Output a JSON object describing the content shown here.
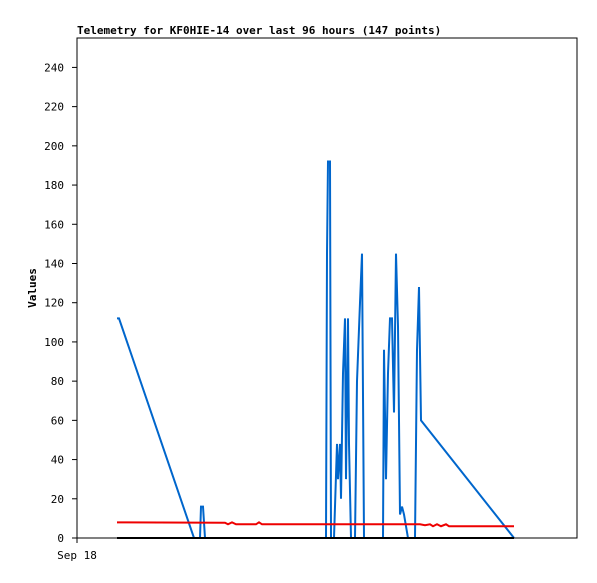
{
  "chart_data": {
    "type": "line",
    "title": "Telemetry for KF0HIE-14 over last 96 hours (147 points)",
    "y_label": "Values",
    "xlim": [
      0,
      100
    ],
    "xticks": [
      {
        "value": 0,
        "label": "Sep 18"
      }
    ],
    "ylim": [
      0,
      255
    ],
    "yticks": [
      0,
      20,
      40,
      60,
      80,
      100,
      120,
      140,
      160,
      180,
      200,
      220,
      240
    ],
    "series": [
      {
        "color": "#0066cc",
        "x": [
          8,
          8.4,
          23.4,
          24.6,
          24.8,
          25.2,
          25.6,
          49.8,
          50,
          50.2,
          50.6,
          50.8,
          51.4,
          52,
          52.2,
          52.6,
          52.8,
          53.2,
          53.6,
          53.8,
          54.2,
          54.4,
          54.8,
          55.6,
          56,
          56.6,
          57,
          57.4,
          61.2,
          61.4,
          61.8,
          62.2,
          62.6,
          63,
          63.4,
          63.8,
          64.2,
          64.6,
          65,
          65.4,
          66.2,
          67.6,
          68,
          68.4,
          68.8,
          87.4
        ],
        "values": [
          112,
          112,
          0,
          0,
          16,
          16,
          0,
          0,
          145,
          192,
          192,
          0,
          0,
          48,
          30,
          48,
          20,
          84,
          112,
          30,
          112,
          48,
          0,
          0,
          80,
          120,
          145,
          0,
          0,
          96,
          30,
          84,
          112,
          112,
          64,
          145,
          108,
          12,
          16,
          12,
          0,
          0,
          96,
          128,
          60,
          0
        ]
      },
      {
        "color": "#ee0000",
        "x": [
          8,
          29.6,
          30.2,
          31,
          31.8,
          35.8,
          36.4,
          37,
          68.6,
          69.6,
          70.6,
          71.2,
          72,
          72.8,
          73.8,
          74.4,
          87.4
        ],
        "values": [
          8,
          7.8,
          7,
          8,
          7,
          7,
          8,
          7,
          7,
          6.5,
          7,
          6,
          7,
          6,
          7,
          6,
          6
        ]
      },
      {
        "color": "#000000",
        "x": [
          8,
          87.4
        ],
        "values": [
          0,
          0
        ]
      }
    ]
  }
}
